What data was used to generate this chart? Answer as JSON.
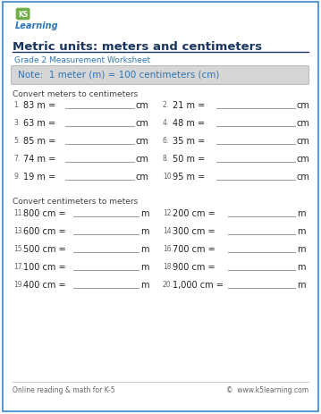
{
  "title": "Metric units: meters and centimeters",
  "subtitle": "Grade 2 Measurement Worksheet",
  "note": "Note:  1 meter (m) = 100 centimeters (cm)",
  "section1_label": "Convert meters to centimeters",
  "section2_label": "Convert centimeters to meters",
  "col1_problems_s1": [
    {
      "num": "1.",
      "text": "83 m =",
      "unit": "cm"
    },
    {
      "num": "3.",
      "text": "63 m =",
      "unit": "cm"
    },
    {
      "num": "5.",
      "text": "85 m =",
      "unit": "cm"
    },
    {
      "num": "7.",
      "text": "74 m =",
      "unit": "cm"
    },
    {
      "num": "9.",
      "text": "19 m =",
      "unit": "cm"
    }
  ],
  "col2_problems_s1": [
    {
      "num": "2.",
      "text": "21 m =",
      "unit": "cm"
    },
    {
      "num": "4.",
      "text": "48 m =",
      "unit": "cm"
    },
    {
      "num": "6.",
      "text": "35 m =",
      "unit": "cm"
    },
    {
      "num": "8.",
      "text": "50 m =",
      "unit": "cm"
    },
    {
      "num": "10.",
      "text": "95 m =",
      "unit": "cm"
    }
  ],
  "col1_problems_s2": [
    {
      "num": "11.",
      "text": "800 cm =",
      "unit": "m"
    },
    {
      "num": "13.",
      "text": "600 cm =",
      "unit": "m"
    },
    {
      "num": "15.",
      "text": "500 cm =",
      "unit": "m"
    },
    {
      "num": "17.",
      "text": "100 cm =",
      "unit": "m"
    },
    {
      "num": "19.",
      "text": "400 cm =",
      "unit": "m"
    }
  ],
  "col2_problems_s2": [
    {
      "num": "12.",
      "text": "200 cm =",
      "unit": "m"
    },
    {
      "num": "14.",
      "text": "300 cm =",
      "unit": "m"
    },
    {
      "num": "16.",
      "text": "700 cm =",
      "unit": "m"
    },
    {
      "num": "18.",
      "text": "900 cm =",
      "unit": "m"
    },
    {
      "num": "20.",
      "text": "1,000 cm =",
      "unit": "m"
    }
  ],
  "footer_left": "Online reading & math for K-5",
  "footer_right": "©  www.k5learning.com",
  "bg_color": "#ffffff",
  "border_color": "#5b9bd5",
  "title_color": "#1a3560",
  "subtitle_color": "#2e74b5",
  "note_bg": "#d6d6d6",
  "note_text_color": "#2e74b5",
  "section_label_color": "#404040",
  "problem_num_color": "#666666",
  "problem_color": "#222222",
  "line_color": "#999999",
  "footer_color": "#666666",
  "logo_green": "#70ad47",
  "logo_blue": "#2e74b5"
}
